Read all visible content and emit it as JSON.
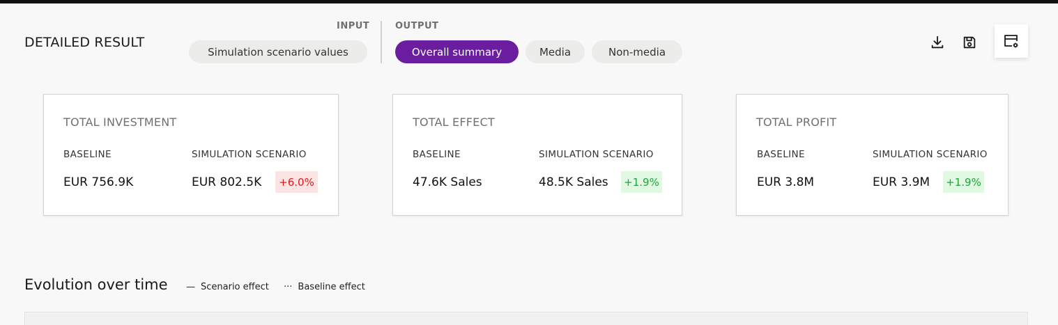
{
  "header": {
    "title": "DETAILED RESULT",
    "input_label": "INPUT",
    "output_label": "OUTPUT"
  },
  "tabs": {
    "input": [
      {
        "label": "Simulation scenario values",
        "active": false
      }
    ],
    "output": [
      {
        "label": "Overall summary",
        "active": true
      },
      {
        "label": "Media",
        "active": false
      },
      {
        "label": "Non-media",
        "active": false
      }
    ]
  },
  "actions": {
    "download_icon": "download-icon",
    "save_icon": "save-icon",
    "config_icon": "table-settings-icon"
  },
  "cards": [
    {
      "title": "TOTAL INVESTMENT",
      "baseline_label": "BASELINE",
      "scenario_label": "SIMULATION SCENARIO",
      "baseline_value": "EUR 756.9K",
      "scenario_value": "EUR 802.5K",
      "change": "+6.0%",
      "change_type": "negative"
    },
    {
      "title": "TOTAL EFFECT",
      "baseline_label": "BASELINE",
      "scenario_label": "SIMULATION SCENARIO",
      "baseline_value": "47.6K Sales",
      "scenario_value": "48.5K Sales",
      "change": "+1.9%",
      "change_type": "positive"
    },
    {
      "title": "TOTAL PROFIT",
      "baseline_label": "BASELINE",
      "scenario_label": "SIMULATION SCENARIO",
      "baseline_value": "EUR 3.8M",
      "scenario_value": "EUR 3.9M",
      "change": "+1.9%",
      "change_type": "positive"
    }
  ],
  "evolution": {
    "title": "Evolution over time",
    "legend": [
      {
        "mark": "—",
        "label": "Scenario effect"
      },
      {
        "mark": "···",
        "label": "Baseline effect"
      }
    ]
  },
  "colors": {
    "accent": "#6a1e9f",
    "negative_bg": "#fde4e4",
    "negative_text": "#d81c1c",
    "positive_bg": "#e1f8e3",
    "positive_text": "#1fa53a"
  }
}
